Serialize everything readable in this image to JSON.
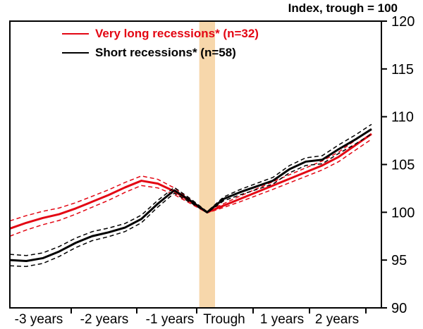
{
  "title": "Index, trough = 100",
  "legend": [
    {
      "label": "Very long recessions* (n=32)",
      "color": "#e30613"
    },
    {
      "label": "Short recessions* (n=58)",
      "color": "#000000"
    }
  ],
  "chart_data": {
    "type": "line",
    "title": "Index, trough = 100",
    "xlabel": "",
    "ylabel": "Index, trough = 100",
    "xlim": [
      -3,
      2.65
    ],
    "ylim": [
      90,
      120
    ],
    "y_ticks": [
      90,
      95,
      100,
      105,
      110,
      115,
      120
    ],
    "x_tick_labels": [
      "-3 years",
      "-2 years",
      "-1 years",
      "Trough",
      "1 years",
      "2 years"
    ],
    "grid": false,
    "legend_position": "top-left-inside",
    "trough_band": {
      "x0": -0.12,
      "x1": 0.12,
      "color": "#f7d7ab"
    },
    "x": [
      -3,
      -2.75,
      -2.5,
      -2.25,
      -2,
      -1.75,
      -1.5,
      -1.25,
      -1,
      -0.75,
      -0.5,
      -0.25,
      0,
      0.25,
      0.5,
      0.75,
      1,
      1.25,
      1.5,
      1.75,
      2,
      2.25,
      2.5
    ],
    "series": [
      {
        "name": "Very long recessions* (n=32)",
        "color": "#e30613",
        "style": "solid-with-dashed-confidence-band",
        "values": [
          98.3,
          98.9,
          99.4,
          99.8,
          100.4,
          101.1,
          101.8,
          102.6,
          103.3,
          103.0,
          102.2,
          101.1,
          100.0,
          100.7,
          101.4,
          102.1,
          102.8,
          103.5,
          104.2,
          104.9,
          105.8,
          107.0,
          108.2
        ],
        "band_offset": [
          0.8,
          0.75,
          0.7,
          0.65,
          0.6,
          0.57,
          0.55,
          0.52,
          0.5,
          0.45,
          0.35,
          0.2,
          0.06,
          0.2,
          0.3,
          0.35,
          0.4,
          0.42,
          0.45,
          0.47,
          0.5,
          0.52,
          0.55
        ]
      },
      {
        "name": "Short recessions* (n=58)",
        "color": "#000000",
        "style": "solid-with-dashed-confidence-band",
        "values": [
          95.0,
          94.9,
          95.2,
          95.9,
          96.8,
          97.5,
          97.9,
          98.4,
          99.3,
          100.9,
          102.3,
          101.2,
          100.0,
          101.4,
          102.1,
          102.7,
          103.3,
          104.5,
          105.3,
          105.5,
          106.6,
          107.6,
          108.7
        ],
        "band_offset": [
          0.6,
          0.57,
          0.55,
          0.52,
          0.5,
          0.47,
          0.45,
          0.42,
          0.4,
          0.35,
          0.3,
          0.2,
          0.06,
          0.2,
          0.28,
          0.32,
          0.35,
          0.38,
          0.4,
          0.42,
          0.45,
          0.47,
          0.5
        ]
      }
    ]
  }
}
